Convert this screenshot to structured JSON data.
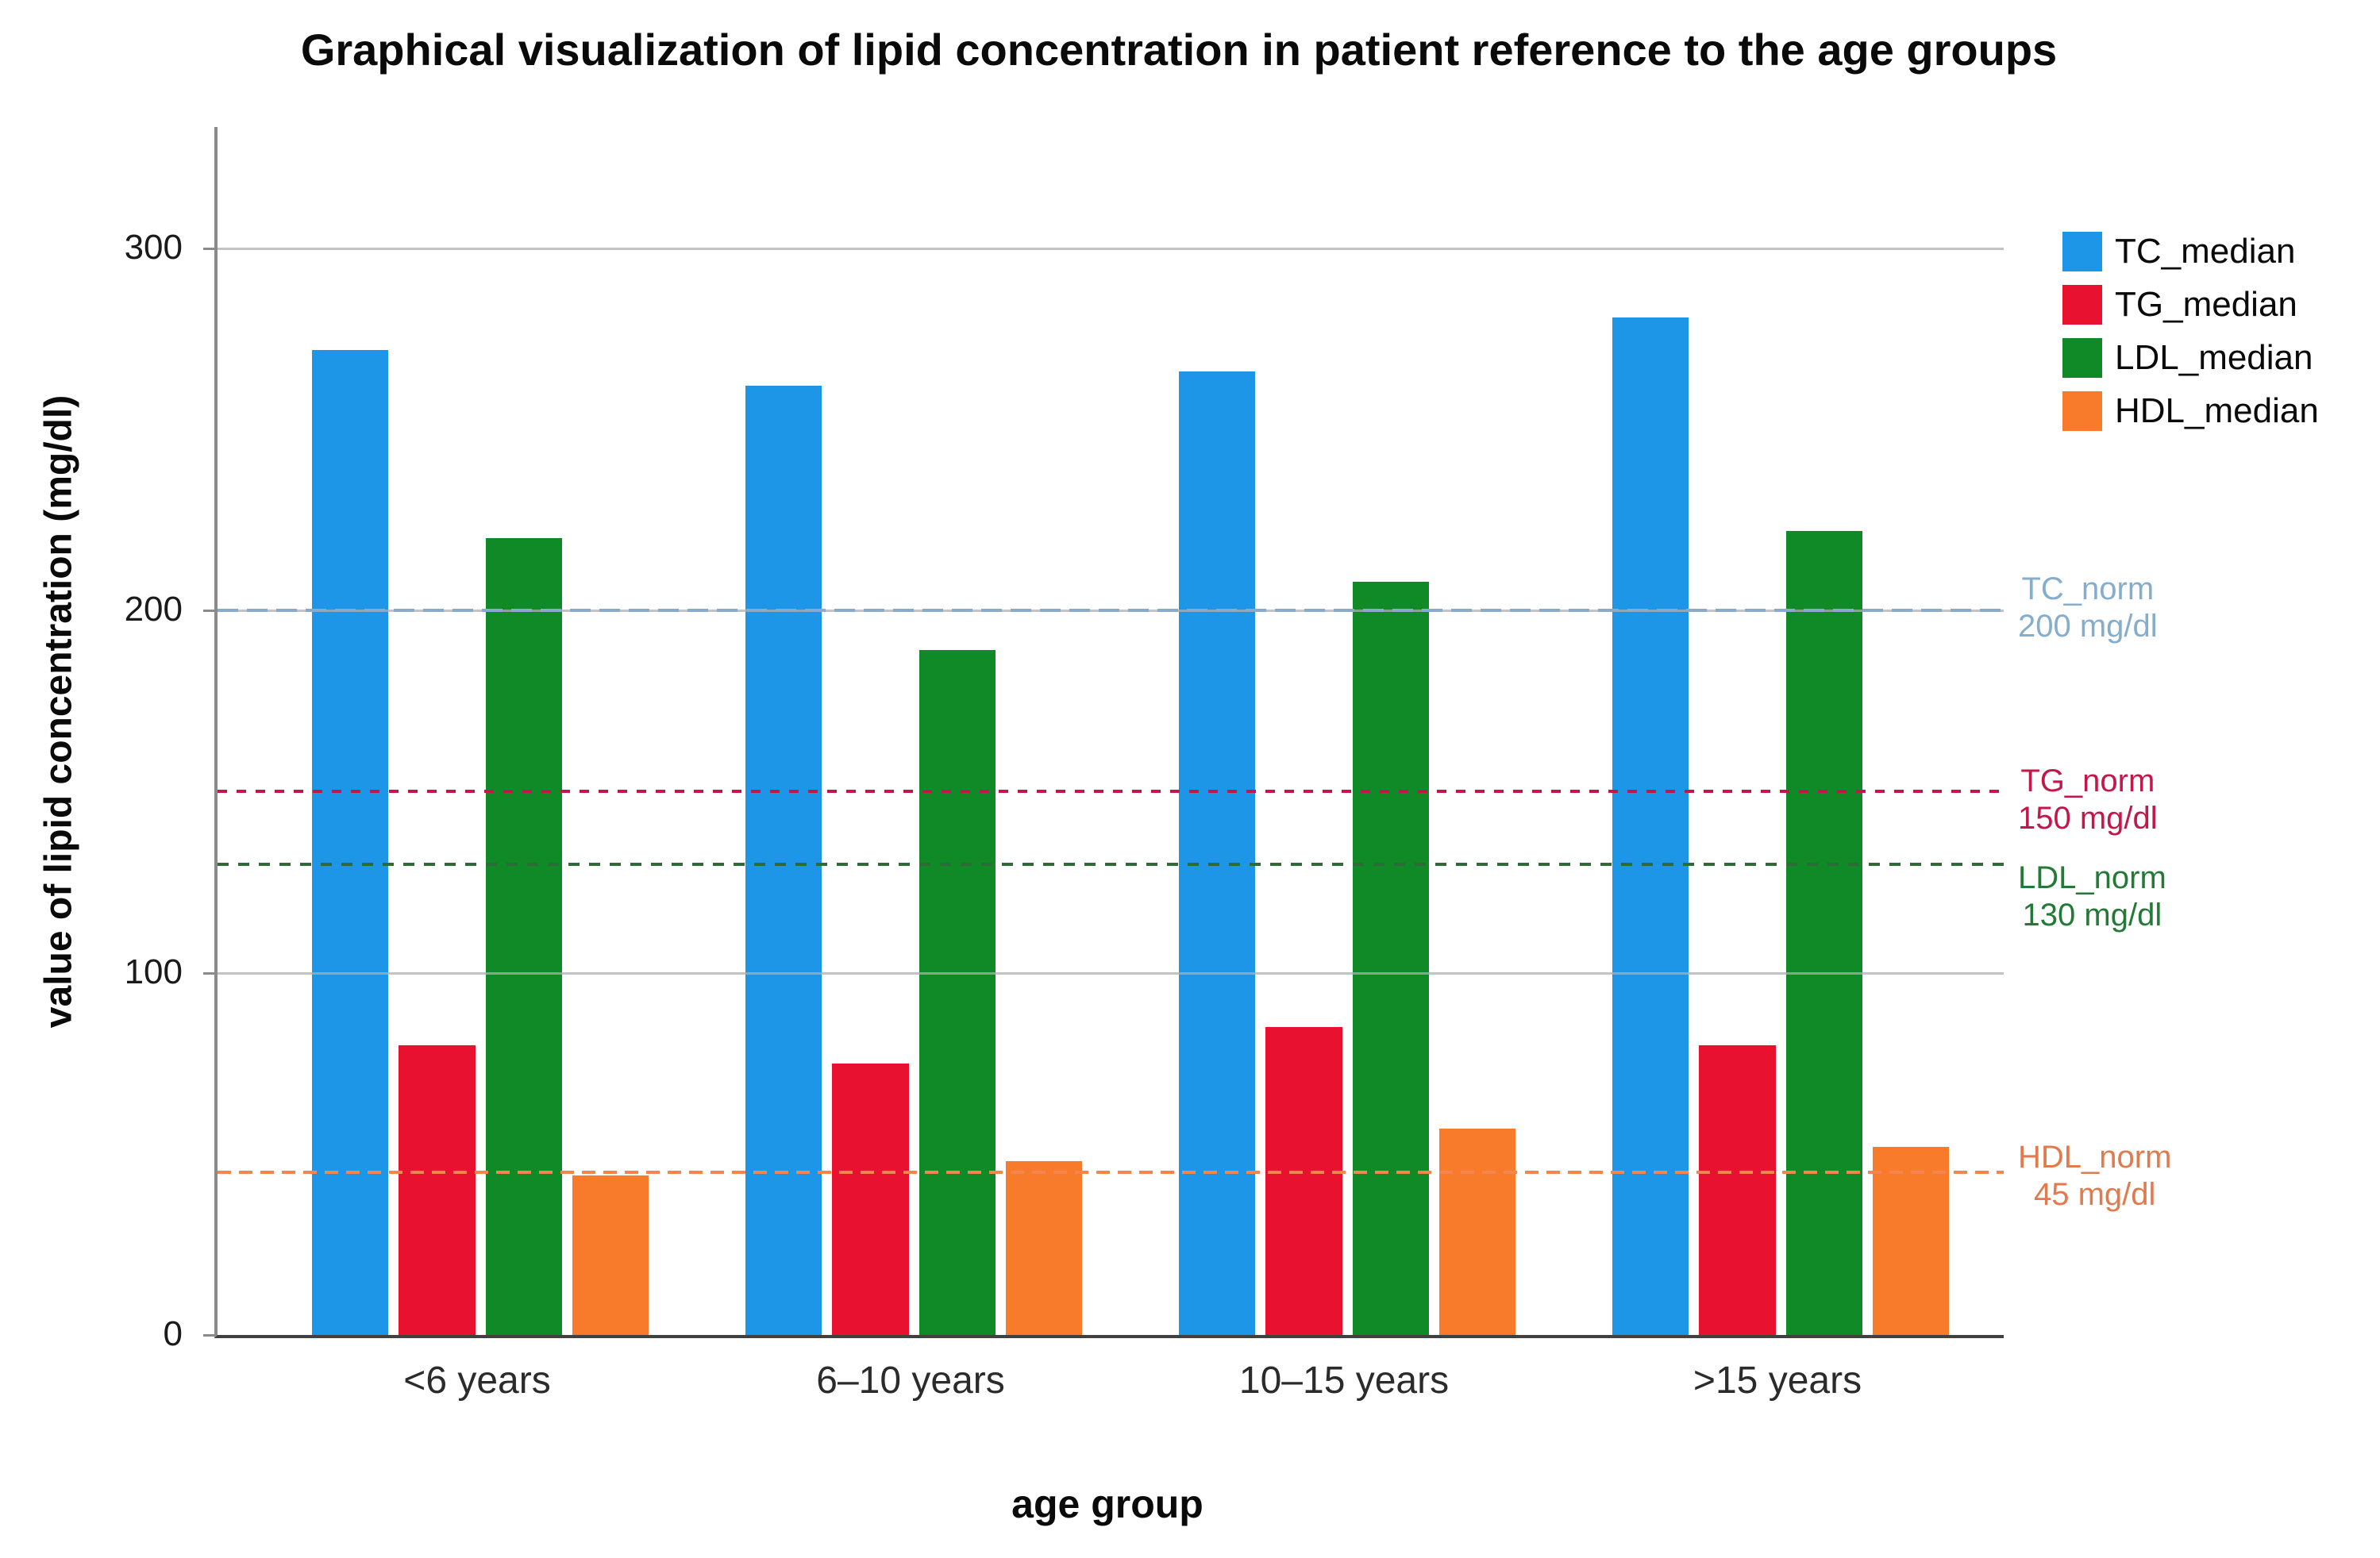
{
  "title": "Graphical visualization of lipid concentration in patient reference to the age groups",
  "y_axis": {
    "label": "value of lipid concentration (mg/dl)",
    "ticks": [
      0,
      100,
      200,
      300
    ]
  },
  "x_axis": {
    "label": "age group"
  },
  "legend": {
    "entries": [
      "TC_median",
      "TG_median",
      "LDL_median",
      "HDL_median"
    ]
  },
  "chart_data": {
    "type": "bar",
    "title": "Graphical visualization of lipid concentration in patient reference to the age groups",
    "xlabel": "age group",
    "ylabel": "value of lipid concentration (mg/dl)",
    "categories": [
      "<6 years",
      "6–10 years",
      "10–15 years",
      ">15 years"
    ],
    "series": [
      {
        "name": "TC_median",
        "color": "#1E96E8",
        "values": [
          272,
          262,
          266,
          281
        ]
      },
      {
        "name": "TG_median",
        "color": "#E8112F",
        "values": [
          80,
          75,
          85,
          80
        ]
      },
      {
        "name": "LDL_median",
        "color": "#0F8A26",
        "values": [
          220,
          189,
          208,
          222
        ]
      },
      {
        "name": "HDL_median",
        "color": "#F87B2C",
        "values": [
          44,
          48,
          57,
          52
        ]
      }
    ],
    "ylim": [
      0,
      333
    ],
    "yticks": [
      0,
      100,
      200,
      300
    ],
    "grid": "horizontal",
    "legend_position": "top-right",
    "reference_lines": [
      {
        "name": "TC_norm",
        "value": 200,
        "label_line1": "TC_norm",
        "label_line2": "200 mg/dl",
        "line_color": "#88AACD",
        "label_color": "#85ADCC"
      },
      {
        "name": "TG_norm",
        "value": 150,
        "label_line1": "TG_norm",
        "label_line2": "150 mg/dl",
        "line_color": "#C2174A",
        "label_color": "#C2174A"
      },
      {
        "name": "LDL_norm",
        "value": 130,
        "label_line1": "LDL_norm",
        "label_line2": "130 mg/dl",
        "line_color": "#2E6B38",
        "label_color": "#237A36"
      },
      {
        "name": "HDL_norm",
        "value": 45,
        "label_line1": "HDL_norm",
        "label_line2": "45 mg/dl",
        "line_color": "#F5854F",
        "label_color": "#E07B4D"
      }
    ]
  }
}
